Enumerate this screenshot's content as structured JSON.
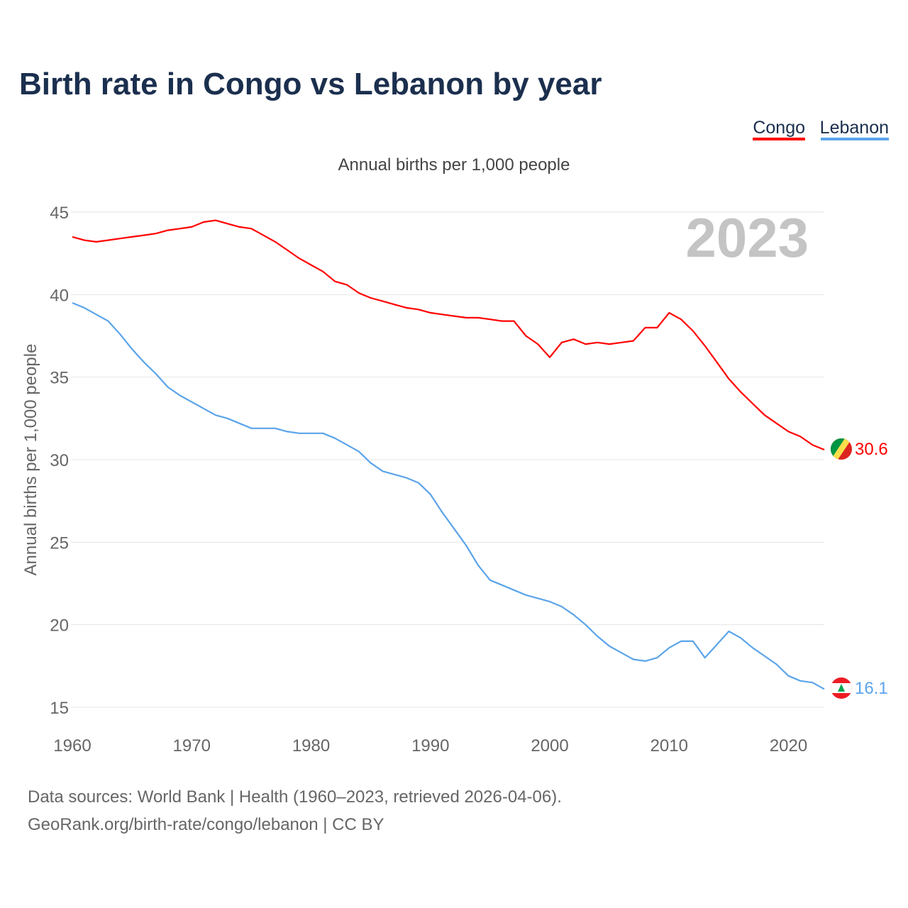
{
  "chart_data": {
    "type": "line",
    "title": "Birth rate in Congo vs Lebanon by year",
    "subtitle": "Annual births per 1,000 people",
    "ylabel": "Annual births per 1,000 people",
    "xlabel": "",
    "xlim": [
      1960,
      2023
    ],
    "ylim": [
      15,
      45
    ],
    "yticks": [
      15,
      20,
      25,
      30,
      35,
      40,
      45
    ],
    "xticks": [
      1960,
      1970,
      1980,
      1990,
      2000,
      2010,
      2020
    ],
    "grid": true,
    "legend_placement": "top-right",
    "year_watermark": "2023",
    "x": [
      1960,
      1961,
      1962,
      1963,
      1964,
      1965,
      1966,
      1967,
      1968,
      1969,
      1970,
      1971,
      1972,
      1973,
      1974,
      1975,
      1976,
      1977,
      1978,
      1979,
      1980,
      1981,
      1982,
      1983,
      1984,
      1985,
      1986,
      1987,
      1988,
      1989,
      1990,
      1991,
      1992,
      1993,
      1994,
      1995,
      1996,
      1997,
      1998,
      1999,
      2000,
      2001,
      2002,
      2003,
      2004,
      2005,
      2006,
      2007,
      2008,
      2009,
      2010,
      2011,
      2012,
      2013,
      2014,
      2015,
      2016,
      2017,
      2018,
      2019,
      2020,
      2021,
      2022,
      2023
    ],
    "series": [
      {
        "name": "Congo",
        "color": "#ff0000",
        "end_label": "30.6",
        "flag": "congo-flag",
        "values": [
          43.5,
          43.3,
          43.2,
          43.3,
          43.4,
          43.5,
          43.6,
          43.7,
          43.9,
          44.0,
          44.1,
          44.4,
          44.5,
          44.3,
          44.1,
          44.0,
          43.6,
          43.2,
          42.7,
          42.2,
          41.8,
          41.4,
          40.8,
          40.6,
          40.1,
          39.8,
          39.6,
          39.4,
          39.2,
          39.1,
          38.9,
          38.8,
          38.7,
          38.6,
          38.6,
          38.5,
          38.4,
          38.4,
          37.5,
          37.0,
          36.2,
          37.1,
          37.3,
          37.0,
          37.1,
          37.0,
          37.1,
          37.2,
          38.0,
          38.0,
          38.9,
          38.5,
          37.8,
          36.9,
          35.9,
          34.9,
          34.1,
          33.4,
          32.7,
          32.2,
          31.7,
          31.4,
          30.9,
          30.6
        ]
      },
      {
        "name": "Lebanon",
        "color": "#5ba4ea",
        "end_label": "16.1",
        "flag": "lebanon-flag",
        "values": [
          39.5,
          39.2,
          38.8,
          38.4,
          37.6,
          36.7,
          35.9,
          35.2,
          34.4,
          33.9,
          33.5,
          33.1,
          32.7,
          32.5,
          32.2,
          31.9,
          31.9,
          31.9,
          31.7,
          31.6,
          31.6,
          31.6,
          31.3,
          30.9,
          30.5,
          29.8,
          29.3,
          29.1,
          28.9,
          28.6,
          27.9,
          26.8,
          25.8,
          24.8,
          23.6,
          22.7,
          22.4,
          22.1,
          21.8,
          21.6,
          21.4,
          21.1,
          20.6,
          20.0,
          19.3,
          18.7,
          18.3,
          17.9,
          17.8,
          18.0,
          18.6,
          19.0,
          19.0,
          18.0,
          18.8,
          19.6,
          19.2,
          18.6,
          18.1,
          17.6,
          16.9,
          16.6,
          16.5,
          16.1
        ]
      }
    ]
  },
  "footer": {
    "line1": "Data sources: World Bank | Health (1960–2023, retrieved 2026-04-06).",
    "line2": "GeoRank.org/birth-rate/congo/lebanon | CC BY"
  }
}
